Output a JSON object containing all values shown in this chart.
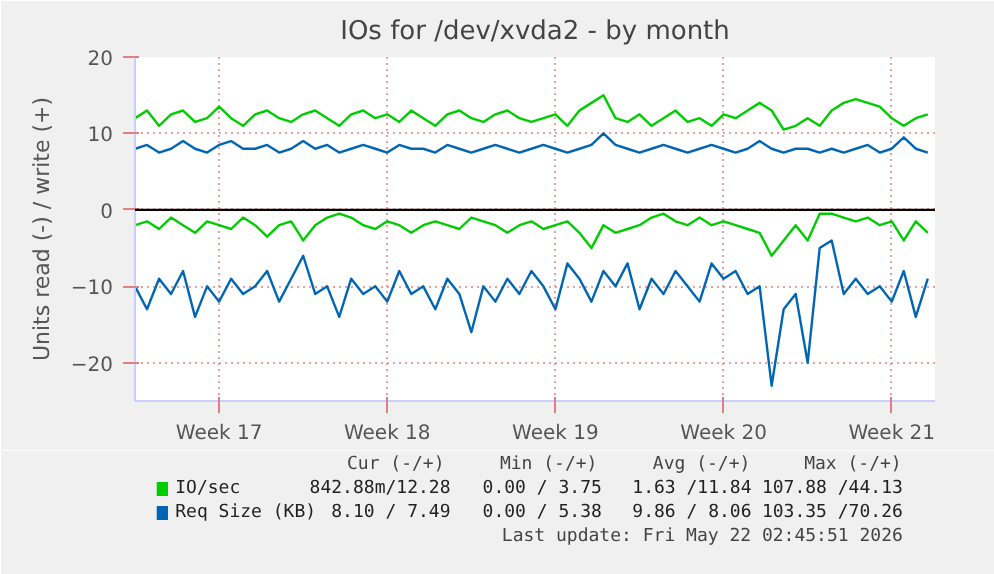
{
  "chart_data": {
    "type": "line",
    "title": "IOs for /dev/xvda2 - by month",
    "ylabel": "Units read (-) / write (+)",
    "categories": [
      null,
      null,
      null,
      null,
      null,
      null,
      null,
      "Week 17",
      null,
      null,
      null,
      null,
      null,
      null,
      null,
      null,
      null,
      null,
      null,
      null,
      null,
      "Week 18",
      null,
      null,
      null,
      null,
      null,
      null,
      null,
      null,
      null,
      null,
      null,
      null,
      null,
      "Week 19",
      null,
      null,
      null,
      null,
      null,
      null,
      null,
      null,
      null,
      null,
      null,
      null,
      null,
      "Week 20",
      null,
      null,
      null,
      null,
      null,
      null,
      null,
      null,
      null,
      null,
      null,
      null,
      null,
      "Week 21",
      null,
      null,
      null
    ],
    "ylim": [
      -25,
      20
    ],
    "yticks": [
      -20,
      -10,
      0,
      10,
      20
    ],
    "grid": true,
    "legend": "bottom",
    "line_style": "solid",
    "ref_lines": [
      {
        "axis": "y",
        "value": 0,
        "label": null,
        "color": "#000000"
      }
    ],
    "series": [
      {
        "name": "IO/sec",
        "color": "#00cc00",
        "values": [
          12,
          13,
          11,
          12.5,
          13,
          11.5,
          12,
          13.5,
          12,
          11,
          12.5,
          13,
          12,
          11.5,
          12.5,
          13,
          12,
          11,
          12.5,
          13,
          12,
          12.5,
          11.5,
          13,
          12,
          11,
          12.5,
          13,
          12,
          11.5,
          12.5,
          13,
          12,
          11.5,
          12,
          12.5,
          11,
          13,
          14,
          15,
          12,
          11.5,
          12.5,
          11,
          12,
          13,
          11.5,
          12,
          11,
          12.5,
          12,
          13,
          14,
          13,
          10.5,
          11,
          12,
          11,
          13,
          14,
          14.5,
          14,
          13.5,
          12,
          11,
          12,
          12.5
        ]
      },
      {
        "color": "#00cc00",
        "values": [
          -2,
          -1.5,
          -2.5,
          -1,
          -2,
          -3,
          -1.5,
          -2,
          -2.5,
          -1,
          -2,
          -3.5,
          -2,
          -1.5,
          -4,
          -2,
          -1,
          -0.5,
          -1,
          -2,
          -2.5,
          -1.5,
          -2,
          -3,
          -2,
          -1.5,
          -2,
          -2.5,
          -1,
          -1.5,
          -2,
          -3,
          -2,
          -1.5,
          -2.5,
          -2,
          -1.5,
          -3,
          -5,
          -2,
          -3,
          -2.5,
          -2,
          -1,
          -0.5,
          -1.5,
          -2,
          -1,
          -2,
          -1.5,
          -2,
          -2.5,
          -3,
          -6,
          -4,
          -2,
          -4,
          -0.5,
          -0.5,
          -1,
          -1.5,
          -1,
          -2,
          -1.5,
          -4,
          -1.5,
          -3
        ]
      },
      {
        "name": "Req Size (KB)",
        "color": "#0066b3",
        "values": [
          8,
          8.5,
          7.5,
          8,
          9,
          8,
          7.5,
          8.5,
          9,
          8,
          8,
          8.5,
          7.5,
          8,
          9,
          8,
          8.5,
          7.5,
          8,
          8.5,
          8,
          7.5,
          8.5,
          8,
          8,
          7.5,
          8.5,
          8,
          7.5,
          8,
          8.5,
          8,
          7.5,
          8,
          8.5,
          8,
          7.5,
          8,
          8.5,
          10,
          8.5,
          8,
          7.5,
          8,
          8.5,
          8,
          7.5,
          8,
          8.5,
          8,
          7.5,
          8,
          9,
          8,
          7.5,
          8,
          8,
          7.5,
          8,
          7.5,
          8,
          8.5,
          7.5,
          8,
          9.5,
          8,
          7.5
        ]
      },
      {
        "color": "#0066b3",
        "values": [
          -10,
          -13,
          -9,
          -11,
          -8,
          -14,
          -10,
          -12,
          -9,
          -11,
          -10,
          -8,
          -12,
          -9,
          -6,
          -11,
          -10,
          -14,
          -9,
          -11,
          -10,
          -12,
          -8,
          -11,
          -10,
          -13,
          -9,
          -11,
          -16,
          -10,
          -12,
          -9,
          -11,
          -8,
          -10,
          -13,
          -7,
          -9,
          -12,
          -8,
          -10,
          -7,
          -13,
          -9,
          -11,
          -8,
          -10,
          -12,
          -7,
          -9,
          -8,
          -11,
          -10,
          -23,
          -13,
          -11,
          -20,
          -5,
          -4,
          -11,
          -9,
          -11,
          -10,
          -12,
          -8,
          -14,
          -9
        ]
      }
    ],
    "annotations": [
      "Cur (-/+)",
      "Min (-/+)",
      "Avg (-/+)",
      "Max (-/+)",
      "842.88m/12.28",
      "0.00 / 3.75",
      "1.63 /11.84",
      "107.88 /44.13",
      "8.10 / 7.49",
      "0.00 / 5.38",
      "9.86 / 8.06",
      "103.35 /70.26",
      "Last update: Fri May 22 02:45:51 2026"
    ]
  }
}
